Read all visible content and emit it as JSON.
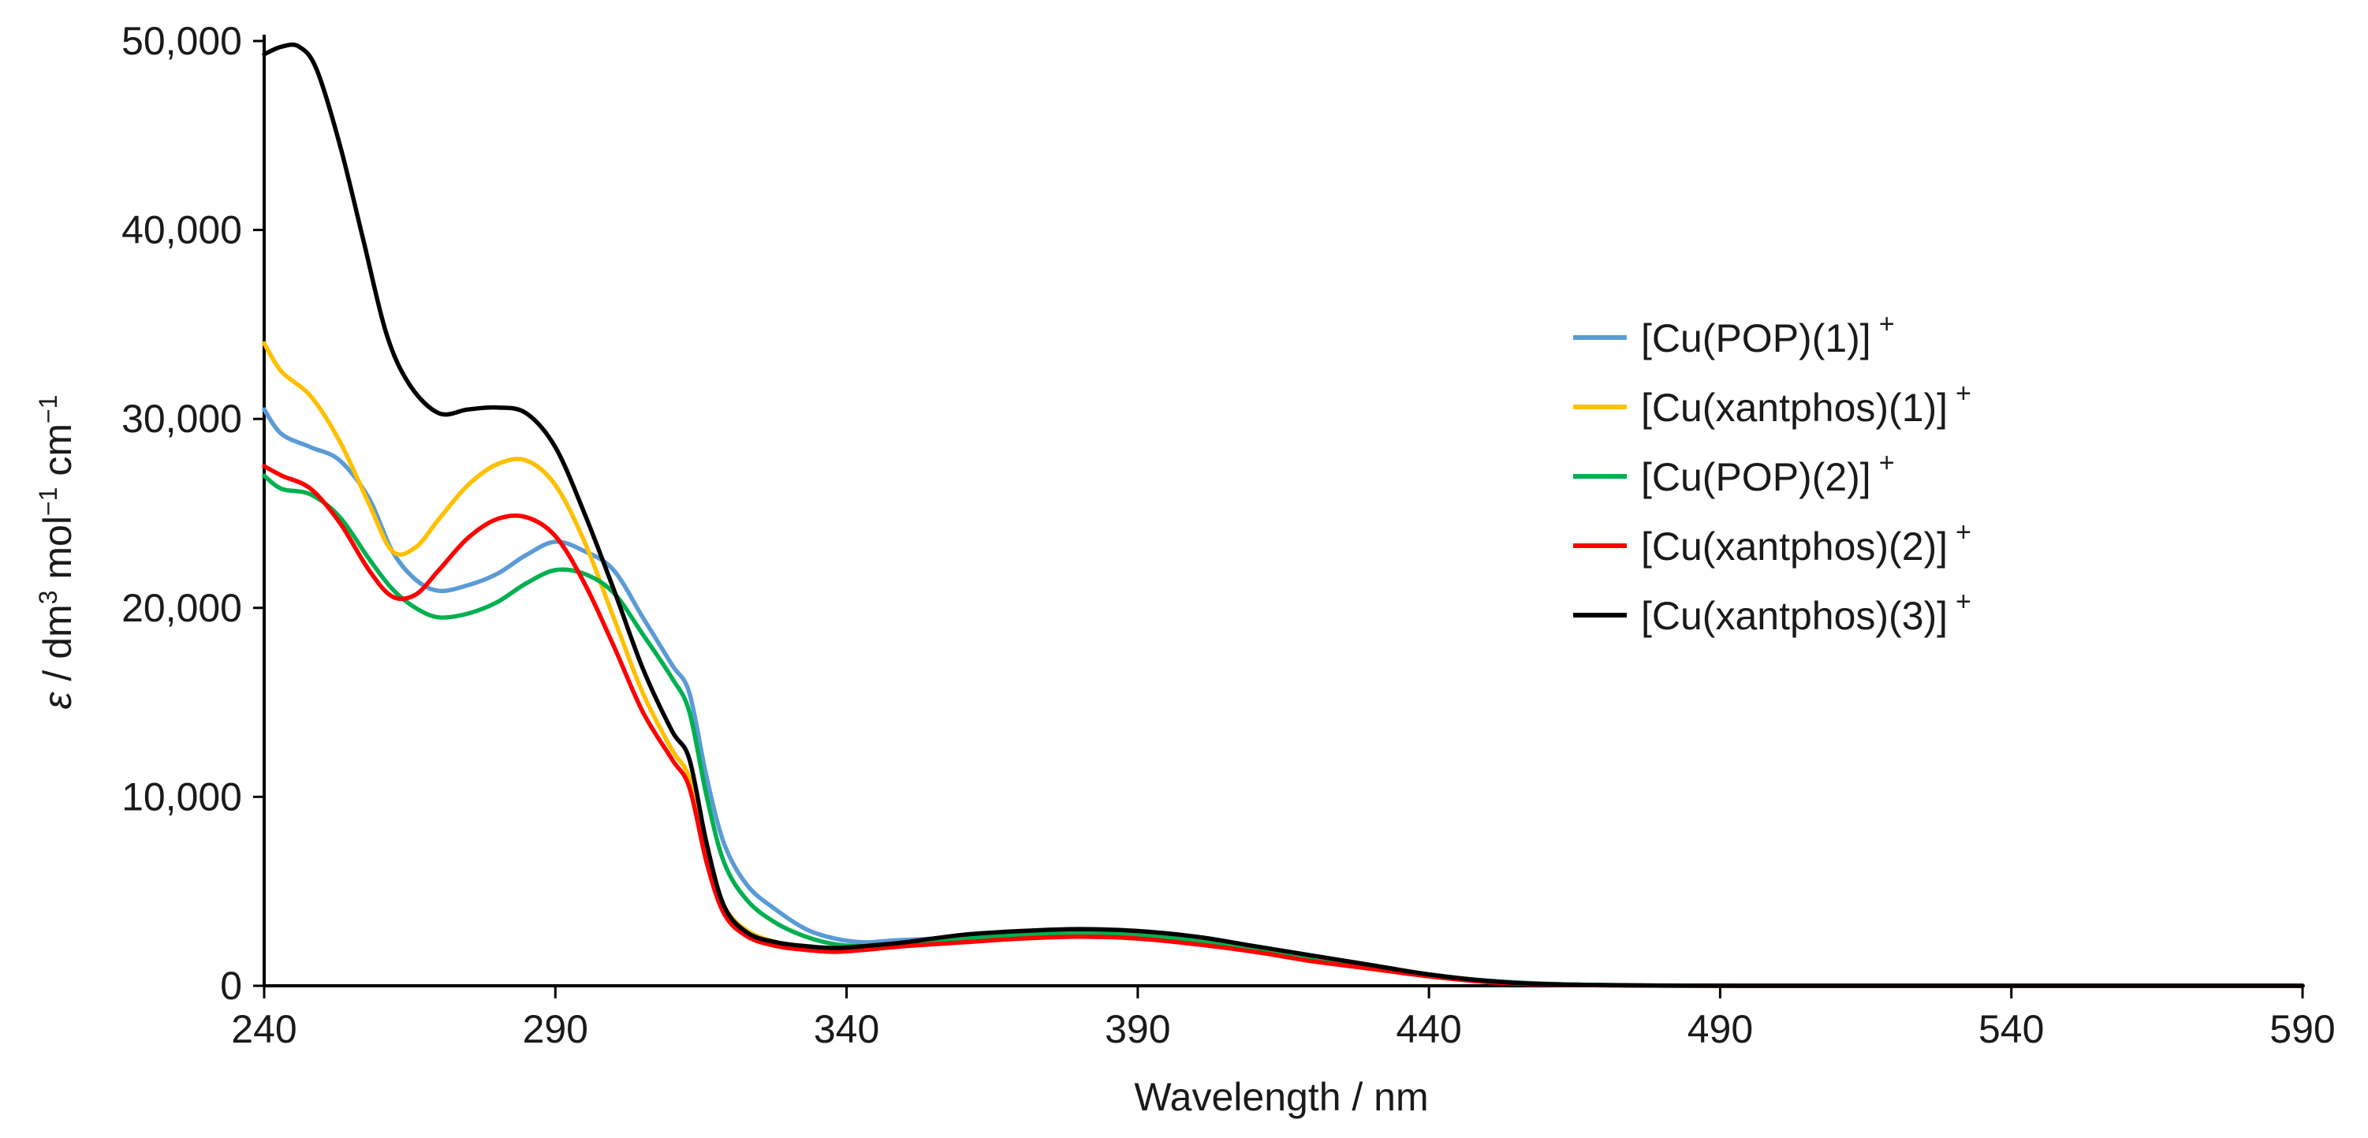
{
  "chart_data": {
    "type": "line",
    "title": "",
    "xlabel": "Wavelength / nm",
    "ylabel": {
      "symbol": "ε",
      "slash": " / dm",
      "sup1": "3",
      "mid": " mol",
      "sup2": "−1",
      "end": " cm",
      "sup3": "−1"
    },
    "xlim": [
      240,
      590
    ],
    "ylim": [
      0,
      50000
    ],
    "xticks": [
      240,
      290,
      340,
      390,
      440,
      490,
      540,
      590
    ],
    "xtick_labels": [
      "240",
      "290",
      "340",
      "390",
      "440",
      "490",
      "540",
      "590"
    ],
    "yticks": [
      0,
      10000,
      20000,
      30000,
      40000,
      50000
    ],
    "ytick_labels": [
      "0",
      "10,000",
      "20,000",
      "30,000",
      "40,000",
      "50,000"
    ],
    "grid": false,
    "legend_position": "right",
    "series": [
      {
        "name": "[Cu(POP)(1)]",
        "charge": "+",
        "color": "#5b9bd5",
        "points": [
          [
            240,
            30500
          ],
          [
            243,
            29200
          ],
          [
            248,
            28500
          ],
          [
            253,
            27800
          ],
          [
            258,
            25800
          ],
          [
            262,
            23000
          ],
          [
            266,
            21500
          ],
          [
            270,
            20900
          ],
          [
            275,
            21200
          ],
          [
            280,
            21800
          ],
          [
            285,
            22800
          ],
          [
            290,
            23500
          ],
          [
            295,
            23000
          ],
          [
            300,
            22000
          ],
          [
            305,
            19500
          ],
          [
            310,
            17000
          ],
          [
            313,
            15500
          ],
          [
            316,
            11000
          ],
          [
            319,
            7500
          ],
          [
            323,
            5300
          ],
          [
            328,
            4000
          ],
          [
            333,
            3000
          ],
          [
            338,
            2500
          ],
          [
            343,
            2300
          ],
          [
            348,
            2400
          ],
          [
            355,
            2500
          ],
          [
            365,
            2700
          ],
          [
            375,
            2900
          ],
          [
            385,
            2900
          ],
          [
            395,
            2700
          ],
          [
            405,
            2300
          ],
          [
            415,
            1800
          ],
          [
            425,
            1300
          ],
          [
            435,
            800
          ],
          [
            445,
            400
          ],
          [
            455,
            180
          ],
          [
            465,
            60
          ],
          [
            480,
            15
          ],
          [
            500,
            0
          ],
          [
            590,
            0
          ]
        ]
      },
      {
        "name": "[Cu(xantphos)(1)]",
        "charge": "+",
        "color": "#ffc000",
        "points": [
          [
            240,
            34000
          ],
          [
            243,
            32500
          ],
          [
            248,
            31200
          ],
          [
            253,
            28800
          ],
          [
            258,
            25500
          ],
          [
            262,
            23000
          ],
          [
            266,
            23200
          ],
          [
            270,
            24700
          ],
          [
            275,
            26500
          ],
          [
            280,
            27600
          ],
          [
            285,
            27800
          ],
          [
            290,
            26500
          ],
          [
            295,
            23500
          ],
          [
            300,
            19500
          ],
          [
            305,
            15500
          ],
          [
            310,
            12500
          ],
          [
            313,
            11000
          ],
          [
            316,
            7000
          ],
          [
            319,
            4200
          ],
          [
            323,
            2900
          ],
          [
            328,
            2300
          ],
          [
            333,
            2000
          ],
          [
            338,
            1900
          ],
          [
            343,
            2000
          ],
          [
            350,
            2200
          ],
          [
            360,
            2500
          ],
          [
            370,
            2700
          ],
          [
            380,
            2800
          ],
          [
            390,
            2700
          ],
          [
            400,
            2400
          ],
          [
            410,
            2000
          ],
          [
            420,
            1500
          ],
          [
            430,
            1000
          ],
          [
            440,
            600
          ],
          [
            450,
            250
          ],
          [
            460,
            90
          ],
          [
            475,
            20
          ],
          [
            495,
            0
          ],
          [
            590,
            0
          ]
        ]
      },
      {
        "name": "[Cu(POP)(2)]",
        "charge": "+",
        "color": "#00b050",
        "points": [
          [
            240,
            27000
          ],
          [
            243,
            26300
          ],
          [
            248,
            26000
          ],
          [
            253,
            24800
          ],
          [
            258,
            22600
          ],
          [
            262,
            21000
          ],
          [
            266,
            20000
          ],
          [
            270,
            19500
          ],
          [
            275,
            19700
          ],
          [
            280,
            20300
          ],
          [
            285,
            21300
          ],
          [
            290,
            22000
          ],
          [
            295,
            21800
          ],
          [
            300,
            20800
          ],
          [
            305,
            18600
          ],
          [
            310,
            16300
          ],
          [
            313,
            14500
          ],
          [
            316,
            10000
          ],
          [
            319,
            6500
          ],
          [
            323,
            4500
          ],
          [
            328,
            3300
          ],
          [
            333,
            2600
          ],
          [
            338,
            2200
          ],
          [
            343,
            2100
          ],
          [
            350,
            2200
          ],
          [
            360,
            2500
          ],
          [
            370,
            2700
          ],
          [
            380,
            2800
          ],
          [
            390,
            2700
          ],
          [
            400,
            2400
          ],
          [
            410,
            2000
          ],
          [
            420,
            1500
          ],
          [
            430,
            1000
          ],
          [
            440,
            600
          ],
          [
            450,
            260
          ],
          [
            460,
            100
          ],
          [
            475,
            25
          ],
          [
            495,
            0
          ],
          [
            590,
            0
          ]
        ]
      },
      {
        "name": "[Cu(xantphos)(2)]",
        "charge": "+",
        "color": "#ff0000",
        "points": [
          [
            240,
            27500
          ],
          [
            243,
            27000
          ],
          [
            248,
            26300
          ],
          [
            253,
            24500
          ],
          [
            258,
            22000
          ],
          [
            262,
            20600
          ],
          [
            266,
            20700
          ],
          [
            270,
            22000
          ],
          [
            275,
            23700
          ],
          [
            280,
            24700
          ],
          [
            285,
            24800
          ],
          [
            290,
            23800
          ],
          [
            295,
            21300
          ],
          [
            300,
            18000
          ],
          [
            305,
            14500
          ],
          [
            310,
            12000
          ],
          [
            313,
            10500
          ],
          [
            316,
            6500
          ],
          [
            319,
            3800
          ],
          [
            323,
            2600
          ],
          [
            328,
            2100
          ],
          [
            333,
            1900
          ],
          [
            338,
            1800
          ],
          [
            343,
            1900
          ],
          [
            350,
            2100
          ],
          [
            360,
            2300
          ],
          [
            370,
            2500
          ],
          [
            380,
            2600
          ],
          [
            390,
            2500
          ],
          [
            400,
            2200
          ],
          [
            410,
            1800
          ],
          [
            420,
            1300
          ],
          [
            430,
            900
          ],
          [
            440,
            500
          ],
          [
            450,
            200
          ],
          [
            460,
            70
          ],
          [
            475,
            15
          ],
          [
            495,
            0
          ],
          [
            590,
            0
          ]
        ]
      },
      {
        "name": "[Cu(xantphos)(3)]",
        "charge": "+",
        "color": "#000000",
        "points": [
          [
            240,
            49300
          ],
          [
            243,
            49700
          ],
          [
            246,
            49700
          ],
          [
            249,
            48500
          ],
          [
            253,
            44500
          ],
          [
            257,
            39500
          ],
          [
            261,
            34500
          ],
          [
            265,
            31800
          ],
          [
            270,
            30300
          ],
          [
            275,
            30500
          ],
          [
            280,
            30600
          ],
          [
            285,
            30300
          ],
          [
            290,
            28500
          ],
          [
            295,
            25000
          ],
          [
            300,
            21000
          ],
          [
            305,
            16800
          ],
          [
            310,
            13500
          ],
          [
            313,
            12000
          ],
          [
            316,
            7500
          ],
          [
            319,
            4200
          ],
          [
            323,
            2800
          ],
          [
            328,
            2300
          ],
          [
            333,
            2100
          ],
          [
            338,
            2000
          ],
          [
            343,
            2100
          ],
          [
            350,
            2300
          ],
          [
            360,
            2700
          ],
          [
            370,
            2900
          ],
          [
            380,
            3000
          ],
          [
            390,
            2900
          ],
          [
            400,
            2600
          ],
          [
            410,
            2100
          ],
          [
            420,
            1600
          ],
          [
            430,
            1100
          ],
          [
            440,
            600
          ],
          [
            450,
            260
          ],
          [
            460,
            90
          ],
          [
            475,
            20
          ],
          [
            495,
            0
          ],
          [
            590,
            0
          ]
        ]
      }
    ]
  }
}
